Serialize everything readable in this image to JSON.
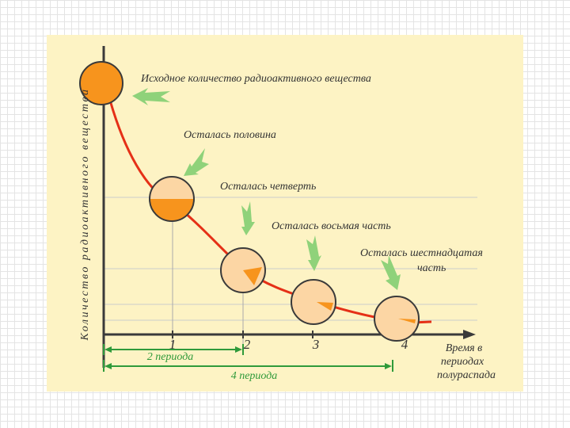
{
  "diagram": {
    "y_axis_label": "Количество радиоактивного вещества",
    "x_axis_label": [
      "Время в",
      "периодах",
      "полураспада"
    ],
    "ticks": [
      "1",
      "2",
      "3",
      "4"
    ],
    "bracket_2": "2 периода",
    "bracket_4": "4 периода",
    "annotations": {
      "initial": "Исходное количество радиоактивного вещества",
      "half": "Осталась половина",
      "quarter": "Осталась четверть",
      "eighth": "Осталась восьмая часть",
      "sixteenth": [
        "Осталась шестнадцатая",
        "часть"
      ]
    },
    "remaining_fractions": [
      1,
      0.5,
      0.25,
      0.125,
      0.0625
    ],
    "colors": {
      "panel": "#fdf3c4",
      "curve": "#e53017",
      "filled": "#f7941d",
      "empty": "#fcd6a4",
      "arrow": "#8fd27a",
      "bracket": "#2f9a3a",
      "axis": "#3a3a3a"
    },
    "icons": [
      "arrow-left-icon",
      "arrow-down-icon",
      "arrow-down-icon",
      "arrow-down-icon",
      "arrow-down-icon"
    ]
  }
}
